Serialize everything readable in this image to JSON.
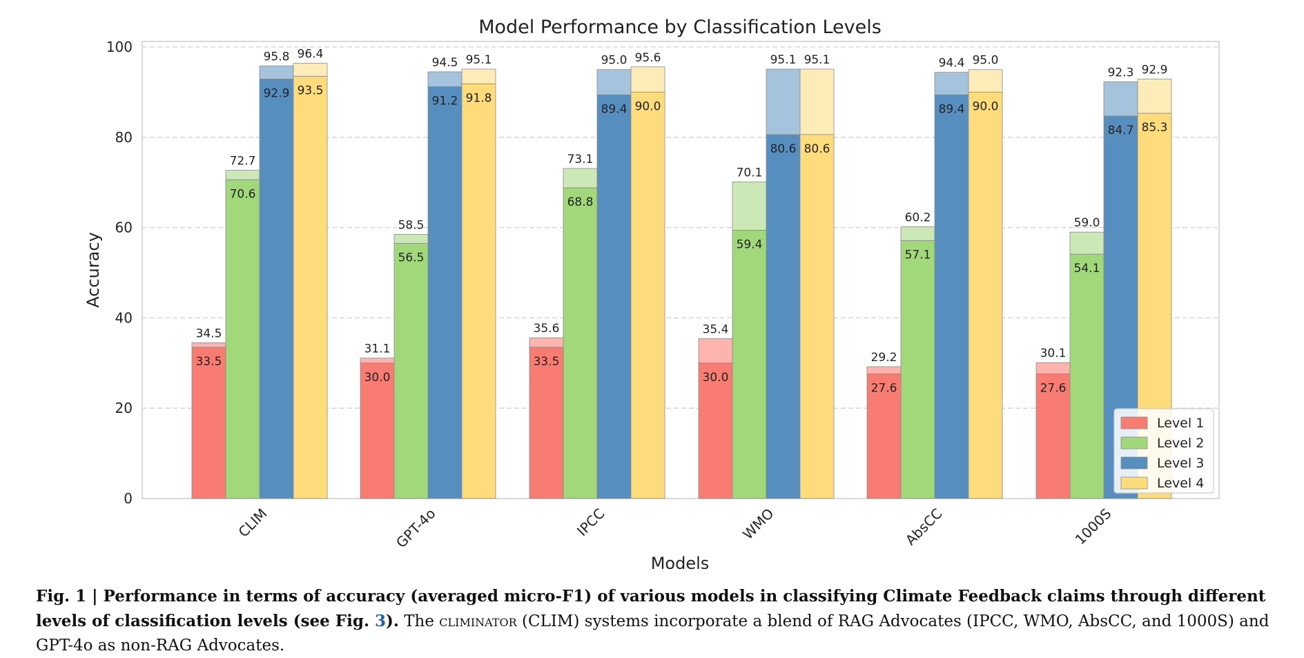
{
  "chart_data": {
    "type": "bar",
    "title": "Model Performance by Classification Levels",
    "xlabel": "Models",
    "ylabel": "Accuracy",
    "ylim": [
      0,
      100
    ],
    "yticks": [
      0,
      20,
      40,
      60,
      80,
      100
    ],
    "grid": true,
    "legend_position": "bottom-right",
    "categories": [
      "CLIM",
      "GPT-4o",
      "IPCC",
      "WMO",
      "AbsCC",
      "1000S"
    ],
    "series": [
      {
        "name": "Level 1",
        "color": "#f97c72",
        "light_color": "#fdb4ae",
        "values": [
          33.5,
          30.0,
          33.5,
          30.0,
          27.6,
          27.6
        ],
        "upper_values": [
          34.5,
          31.1,
          35.6,
          35.4,
          29.2,
          30.1
        ]
      },
      {
        "name": "Level 2",
        "color": "#a0d87a",
        "light_color": "#cbe8b6",
        "values": [
          70.6,
          56.5,
          68.8,
          59.4,
          57.1,
          54.1
        ],
        "upper_values": [
          72.7,
          58.5,
          73.1,
          70.1,
          60.2,
          59.0
        ]
      },
      {
        "name": "Level 3",
        "color": "#568fbf",
        "light_color": "#a6c3dd",
        "values": [
          92.9,
          91.2,
          89.4,
          80.6,
          89.4,
          84.7
        ],
        "upper_values": [
          95.8,
          94.5,
          95.0,
          95.1,
          94.4,
          92.3
        ]
      },
      {
        "name": "Level 4",
        "color": "#fedc7c",
        "light_color": "#feecb8",
        "values": [
          93.5,
          91.8,
          90.0,
          80.6,
          90.0,
          85.3
        ],
        "upper_values": [
          96.4,
          95.1,
          95.6,
          95.1,
          95.0,
          92.9
        ]
      }
    ]
  },
  "caption": {
    "fig_label": "Fig. 1 | Performance in terms of accuracy (averaged micro-F1) of various models in classifying Climate Feedback claims through different levels of classification levels (see Fig. ",
    "fig_ref": "3",
    "fig_close": ").",
    "text_a": " The ",
    "climinator": "climinator",
    "text_b": " (CLIM) systems incorporate a blend of RAG Advocates (IPCC, WMO, AbsCC, and 1000S) and GPT-4o as non-RAG Advocates."
  }
}
